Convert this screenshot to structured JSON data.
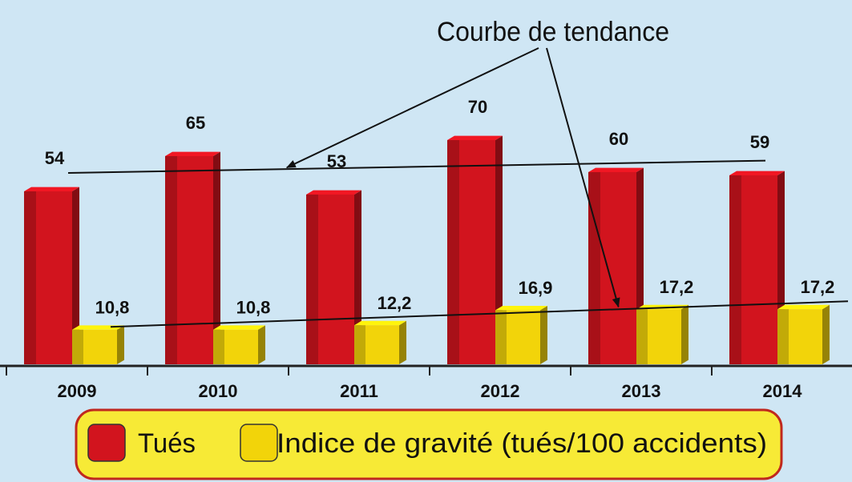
{
  "chart_data": {
    "type": "bar",
    "categories": [
      "2009",
      "2010",
      "2011",
      "2012",
      "2013",
      "2014"
    ],
    "series": [
      {
        "name": "Tués",
        "color": "#d2141e",
        "values": [
          54,
          65,
          53,
          70,
          60,
          59
        ]
      },
      {
        "name": "Indice de gravité (tués/100 accidents)",
        "color": "#f2d40a",
        "values": [
          10.8,
          10.8,
          12.2,
          16.9,
          17.2,
          17.2
        ],
        "value_labels": [
          "10,8",
          "10,8",
          "12,2",
          "16,9",
          "17,2",
          "17,2"
        ]
      }
    ],
    "annotations": [
      "Courbe de tendance"
    ],
    "legend": "bottom"
  }
}
